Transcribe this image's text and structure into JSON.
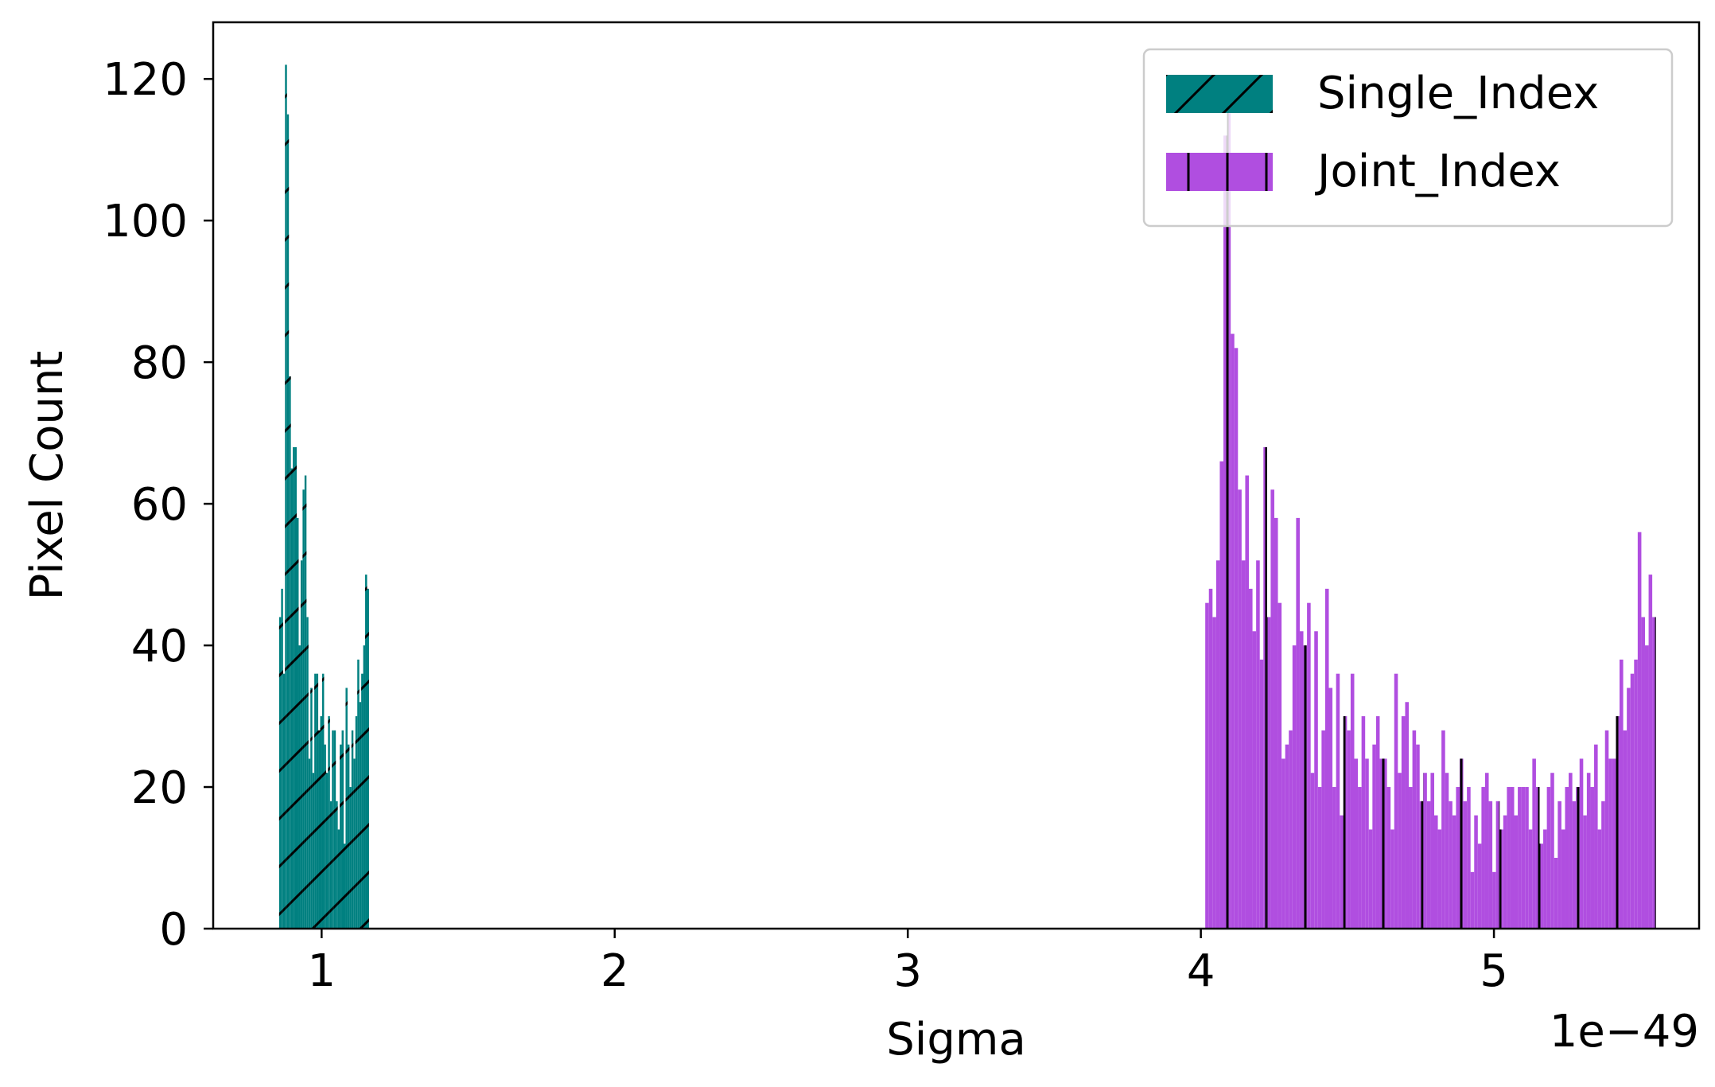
{
  "chart_data": {
    "type": "bar",
    "subtype": "histogram",
    "xlabel": "Sigma",
    "ylabel": "Pixel Count",
    "x_offset_label": "1e−49",
    "x_scale_factor": 1e-49,
    "xlim": [
      0.63,
      5.7
    ],
    "ylim": [
      0,
      128
    ],
    "xticks": [
      1,
      2,
      3,
      4,
      5
    ],
    "yticks": [
      0,
      20,
      40,
      60,
      80,
      100,
      120
    ],
    "grid": false,
    "legend_position": "upper right",
    "series": [
      {
        "name": "Single_Index",
        "color": "#008080",
        "hatch": "/",
        "bin_start": 0.855,
        "bin_width": 0.00667,
        "counts": [
          44,
          48,
          36,
          122,
          115,
          78,
          65,
          68,
          68,
          58,
          40,
          52,
          62,
          64,
          44,
          24,
          34,
          22,
          36,
          36,
          28,
          30,
          36,
          26,
          22,
          30,
          18,
          28,
          28,
          18,
          14,
          26,
          28,
          12,
          34,
          26,
          20,
          28,
          24,
          30,
          38,
          32,
          36,
          40,
          50,
          48
        ]
      },
      {
        "name": "Joint_Index",
        "color": "#b04ee0",
        "hatch": "|",
        "bin_start": 4.015,
        "bin_width": 0.0124,
        "counts": [
          46,
          48,
          44,
          52,
          66,
          112,
          116,
          84,
          82,
          62,
          52,
          64,
          48,
          42,
          52,
          38,
          68,
          44,
          62,
          58,
          46,
          24,
          26,
          28,
          40,
          58,
          42,
          40,
          46,
          22,
          42,
          20,
          28,
          48,
          34,
          20,
          36,
          16,
          30,
          28,
          36,
          24,
          20,
          30,
          24,
          14,
          26,
          30,
          24,
          24,
          20,
          14,
          36,
          22,
          30,
          32,
          20,
          28,
          26,
          18,
          22,
          18,
          22,
          16,
          14,
          28,
          22,
          18,
          16,
          20,
          24,
          18,
          20,
          8,
          16,
          12,
          20,
          22,
          18,
          8,
          18,
          14,
          16,
          20,
          20,
          16,
          20,
          20,
          20,
          14,
          24,
          20,
          12,
          14,
          20,
          22,
          10,
          18,
          14,
          20,
          22,
          18,
          20,
          24,
          16,
          22,
          20,
          26,
          14,
          18,
          28,
          24,
          24,
          30,
          38,
          28,
          34,
          36,
          38,
          56,
          44,
          40,
          50,
          44
        ]
      }
    ]
  }
}
